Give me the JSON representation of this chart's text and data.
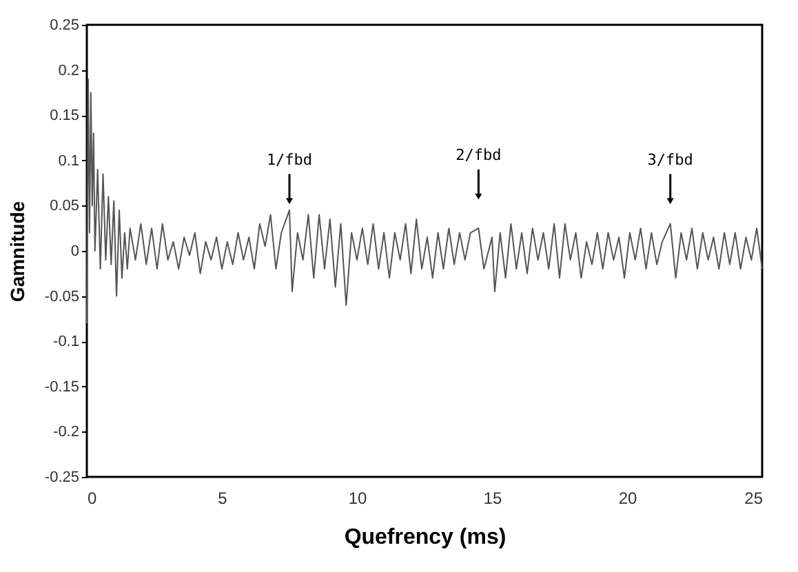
{
  "chart_data": {
    "type": "line",
    "xlabel": "Quefrency (ms)",
    "ylabel": "Gamnitude",
    "x": [
      0,
      0.05,
      0.1,
      0.15,
      0.2,
      0.25,
      0.3,
      0.4,
      0.5,
      0.6,
      0.7,
      0.8,
      0.9,
      1.0,
      1.1,
      1.2,
      1.3,
      1.4,
      1.5,
      1.6,
      1.8,
      2.0,
      2.2,
      2.4,
      2.6,
      2.8,
      3.0,
      3.2,
      3.4,
      3.6,
      3.8,
      4.0,
      4.2,
      4.4,
      4.6,
      4.8,
      5.0,
      5.2,
      5.4,
      5.6,
      5.8,
      6.0,
      6.2,
      6.4,
      6.6,
      6.8,
      7.0,
      7.2,
      7.5,
      7.6,
      7.8,
      8.0,
      8.2,
      8.4,
      8.6,
      8.8,
      9.0,
      9.2,
      9.4,
      9.6,
      9.8,
      10.0,
      10.2,
      10.4,
      10.6,
      10.8,
      11.0,
      11.2,
      11.4,
      11.6,
      11.8,
      12.0,
      12.2,
      12.4,
      12.6,
      12.8,
      13.0,
      13.2,
      13.4,
      13.6,
      13.8,
      14.0,
      14.2,
      14.5,
      14.7,
      15.0,
      15.1,
      15.3,
      15.5,
      15.7,
      15.9,
      16.1,
      16.3,
      16.5,
      16.7,
      16.9,
      17.1,
      17.3,
      17.5,
      17.7,
      17.9,
      18.1,
      18.3,
      18.5,
      18.7,
      18.9,
      19.1,
      19.3,
      19.5,
      19.7,
      19.9,
      20.1,
      20.3,
      20.5,
      20.7,
      20.9,
      21.1,
      21.3,
      21.6,
      21.8,
      22.0,
      22.2,
      22.4,
      22.6,
      22.8,
      23.0,
      23.2,
      23.4,
      23.6,
      23.8,
      24.0,
      24.2,
      24.4,
      24.6,
      24.8,
      25.0
    ],
    "series": [
      {
        "color": "#555555",
        "values": [
          -0.08,
          0.19,
          0.02,
          0.175,
          0.05,
          0.13,
          0.0,
          0.09,
          -0.02,
          0.085,
          -0.01,
          0.06,
          -0.015,
          0.055,
          -0.05,
          0.045,
          -0.03,
          0.02,
          -0.02,
          0.025,
          -0.01,
          0.03,
          -0.015,
          0.025,
          -0.02,
          0.03,
          -0.01,
          0.01,
          -0.02,
          0.015,
          -0.005,
          0.02,
          -0.025,
          0.01,
          -0.01,
          0.015,
          -0.02,
          0.01,
          -0.015,
          0.02,
          -0.01,
          0.015,
          -0.02,
          0.03,
          0.005,
          0.04,
          -0.02,
          0.02,
          0.045,
          -0.045,
          0.02,
          -0.01,
          0.04,
          -0.03,
          0.04,
          -0.02,
          0.035,
          -0.04,
          0.03,
          -0.06,
          0.02,
          -0.01,
          0.025,
          -0.015,
          0.03,
          -0.02,
          0.02,
          -0.03,
          0.02,
          -0.01,
          0.03,
          -0.025,
          0.035,
          -0.02,
          0.015,
          -0.03,
          0.02,
          -0.02,
          0.025,
          -0.015,
          0.02,
          -0.01,
          0.02,
          0.025,
          -0.02,
          0.015,
          -0.045,
          0.02,
          -0.03,
          0.03,
          -0.02,
          0.02,
          -0.025,
          0.025,
          -0.01,
          0.02,
          -0.02,
          0.03,
          -0.03,
          0.03,
          -0.01,
          0.02,
          -0.03,
          0.01,
          -0.015,
          0.02,
          -0.02,
          0.02,
          -0.01,
          0.015,
          -0.03,
          0.02,
          -0.01,
          0.025,
          -0.02,
          0.02,
          -0.015,
          0.01,
          0.03,
          -0.03,
          0.02,
          -0.01,
          0.025,
          -0.02,
          0.02,
          -0.01,
          0.015,
          -0.02,
          0.02,
          -0.015,
          0.02,
          -0.02,
          0.015,
          -0.01,
          0.025,
          -0.02
        ]
      }
    ],
    "xlim": [
      0,
      25
    ],
    "xticks": [
      0,
      5,
      10,
      15,
      20,
      25
    ],
    "ylim": [
      -0.25,
      0.25
    ],
    "yticks": [
      -0.25,
      -0.2,
      -0.15,
      -0.1,
      -0.05,
      0,
      0.05,
      0.1,
      0.15,
      0.2,
      0.25
    ],
    "grid": false,
    "marker": "none",
    "line_style": "solid",
    "annotations": [
      {
        "text": "1/fbd",
        "x": 7.5,
        "y": 0.055
      },
      {
        "text": "2/fbd",
        "x": 14.5,
        "y": 0.06
      },
      {
        "text": "3/fbd",
        "x": 21.6,
        "y": 0.055
      }
    ]
  }
}
